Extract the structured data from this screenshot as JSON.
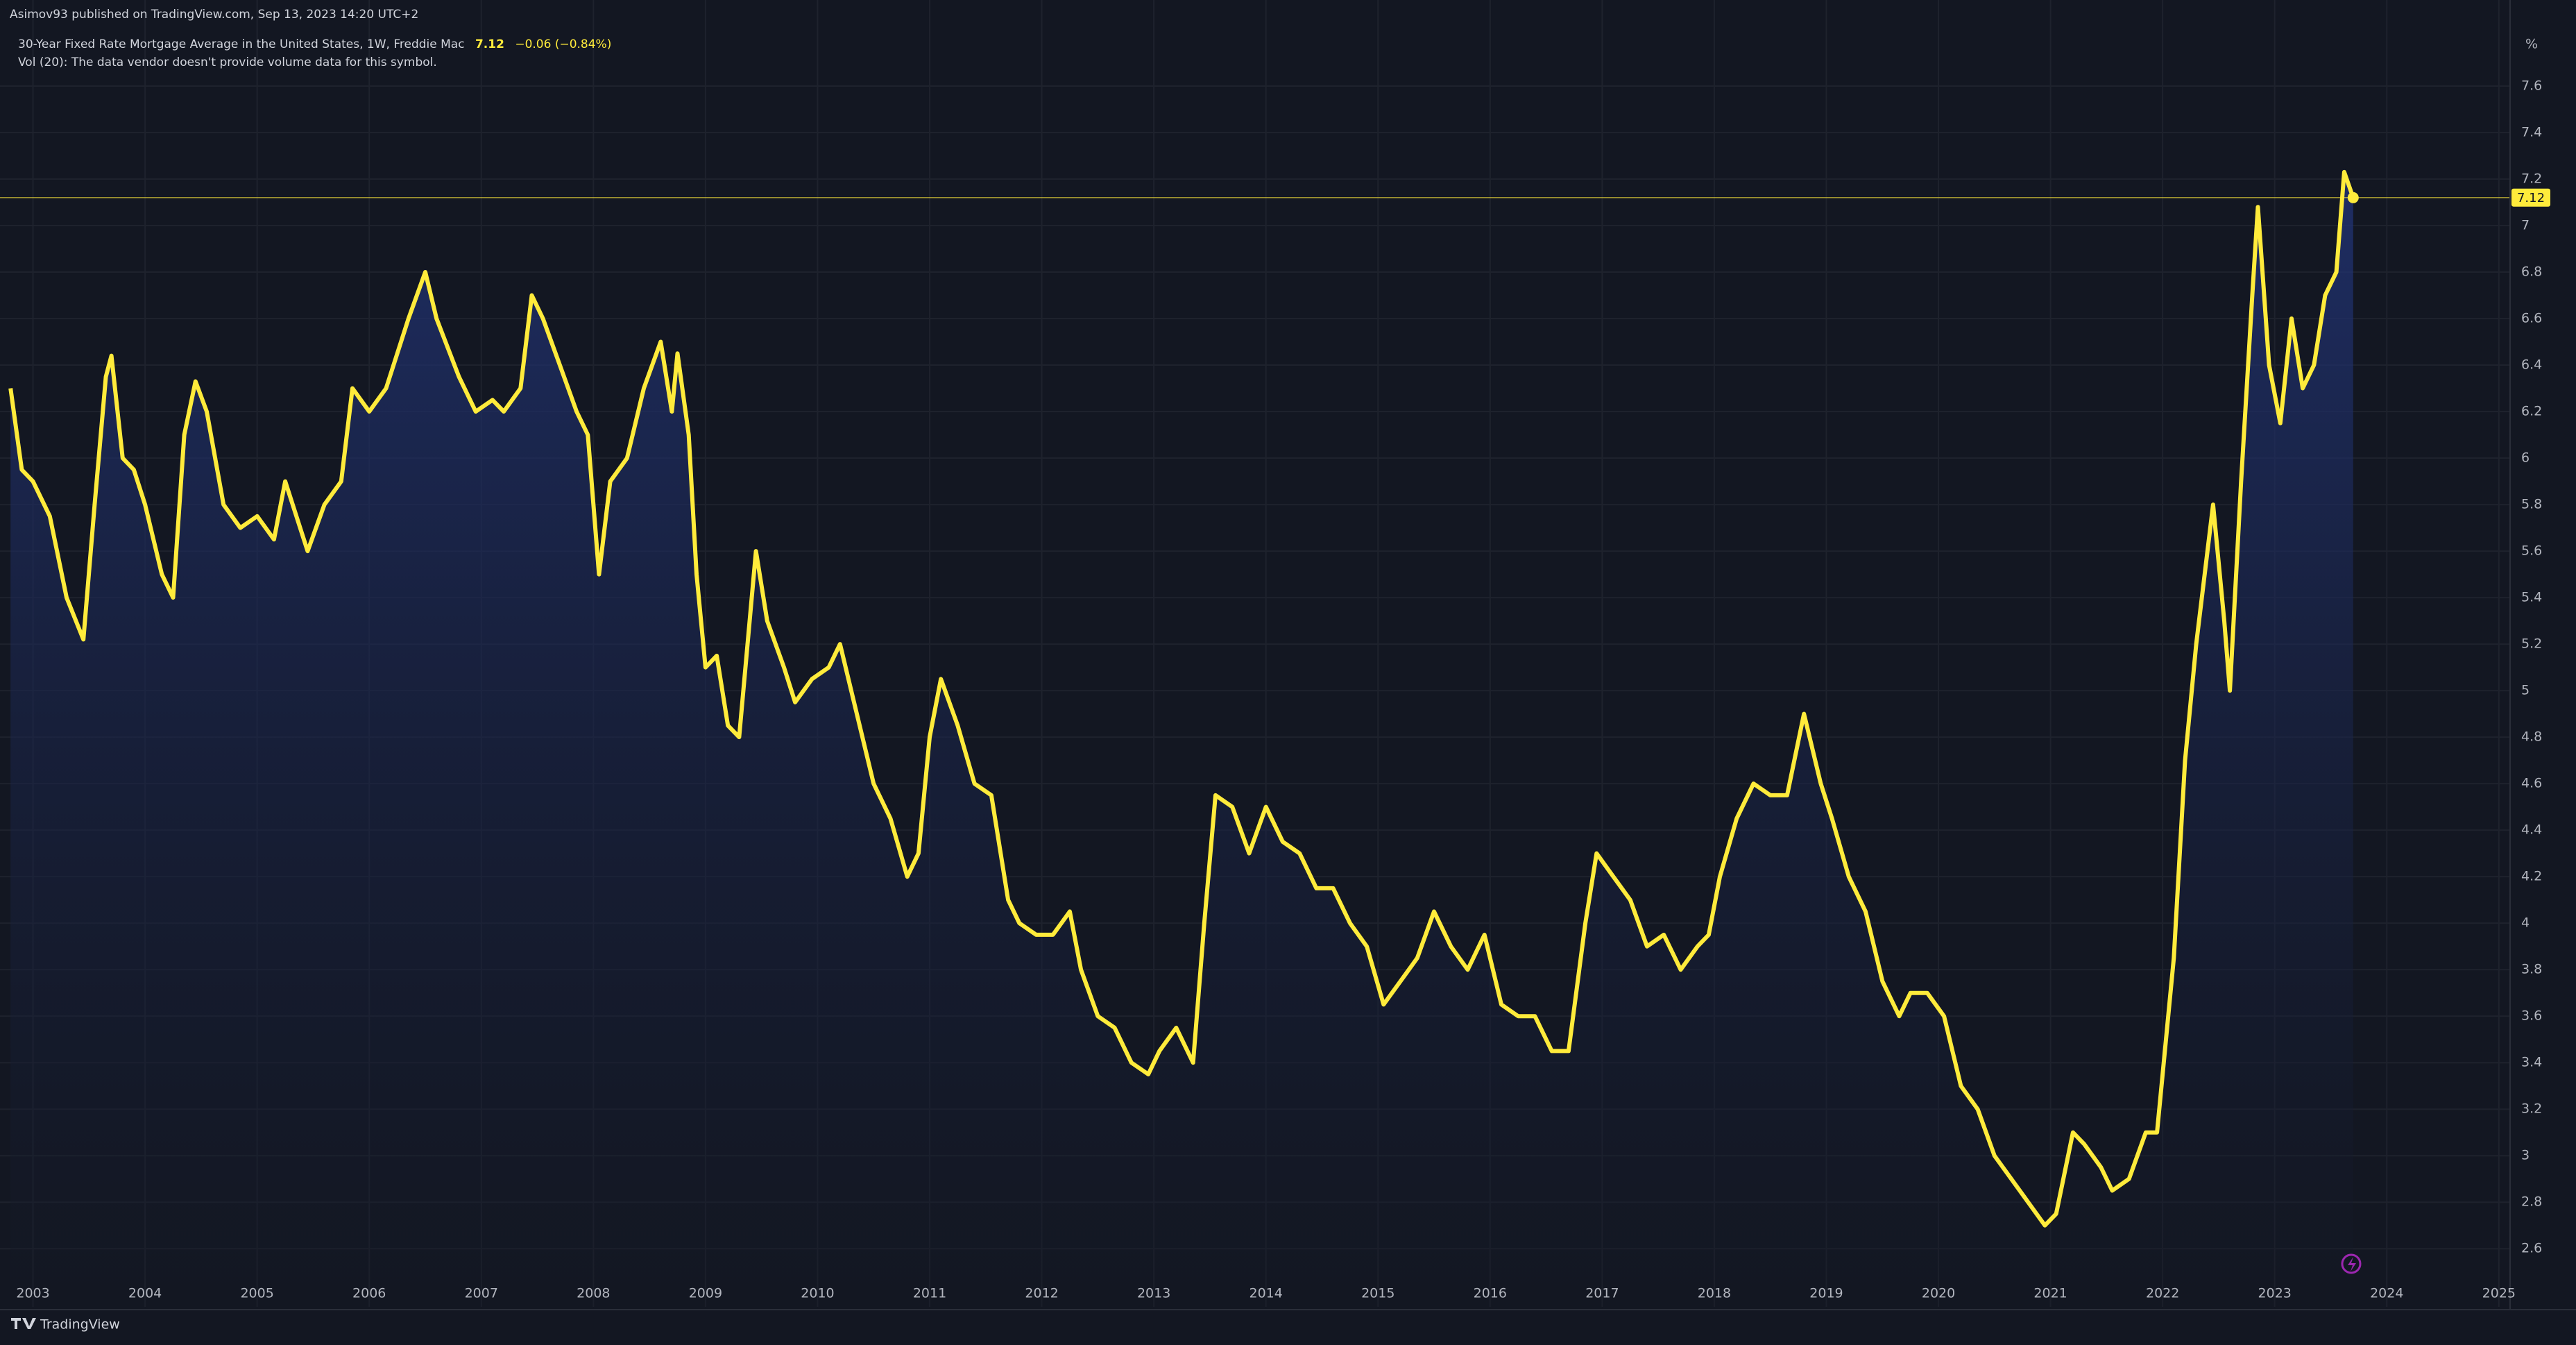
{
  "header": {
    "publisher": "Asimov93 published on TradingView.com, Sep 13, 2023 14:20 UTC+2",
    "symbol": "30-Year Fixed Rate Mortgage Average in the United States, 1W, Freddie Mac",
    "change": "−0.06 (−0.84%)",
    "volume_note": "Vol (20): The data vendor doesn't provide volume data for this symbol."
  },
  "chart_data": {
    "type": "area",
    "unit_label": "%",
    "x": [
      2002.8,
      2002.9,
      2003.0,
      2003.15,
      2003.3,
      2003.45,
      2003.55,
      2003.65,
      2003.7,
      2003.8,
      2003.9,
      2004.0,
      2004.15,
      2004.25,
      2004.35,
      2004.45,
      2004.55,
      2004.7,
      2004.85,
      2005.0,
      2005.15,
      2005.25,
      2005.45,
      2005.6,
      2005.75,
      2005.85,
      2006.0,
      2006.15,
      2006.35,
      2006.5,
      2006.6,
      2006.8,
      2006.95,
      2007.1,
      2007.2,
      2007.35,
      2007.45,
      2007.55,
      2007.7,
      2007.85,
      2007.95,
      2008.05,
      2008.15,
      2008.3,
      2008.45,
      2008.6,
      2008.7,
      2008.75,
      2008.85,
      2008.92,
      2009.0,
      2009.1,
      2009.2,
      2009.3,
      2009.45,
      2009.55,
      2009.7,
      2009.8,
      2009.95,
      2010.1,
      2010.2,
      2010.35,
      2010.5,
      2010.65,
      2010.8,
      2010.9,
      2011.0,
      2011.1,
      2011.25,
      2011.4,
      2011.55,
      2011.7,
      2011.8,
      2011.95,
      2012.1,
      2012.25,
      2012.35,
      2012.5,
      2012.65,
      2012.8,
      2012.95,
      2013.05,
      2013.2,
      2013.35,
      2013.45,
      2013.55,
      2013.7,
      2013.85,
      2014.0,
      2014.15,
      2014.3,
      2014.45,
      2014.6,
      2014.75,
      2014.9,
      2015.05,
      2015.2,
      2015.35,
      2015.5,
      2015.65,
      2015.8,
      2015.95,
      2016.1,
      2016.25,
      2016.4,
      2016.55,
      2016.7,
      2016.85,
      2016.95,
      2017.1,
      2017.25,
      2017.4,
      2017.55,
      2017.7,
      2017.85,
      2017.95,
      2018.05,
      2018.2,
      2018.35,
      2018.5,
      2018.65,
      2018.8,
      2018.95,
      2019.05,
      2019.2,
      2019.35,
      2019.5,
      2019.65,
      2019.75,
      2019.9,
      2020.05,
      2020.2,
      2020.35,
      2020.5,
      2020.65,
      2020.8,
      2020.95,
      2021.05,
      2021.2,
      2021.3,
      2021.45,
      2021.55,
      2021.7,
      2021.85,
      2021.95,
      2022.1,
      2022.2,
      2022.3,
      2022.45,
      2022.55,
      2022.6,
      2022.7,
      2022.8,
      2022.85,
      2022.95,
      2023.05,
      2023.15,
      2023.25,
      2023.35,
      2023.45,
      2023.55,
      2023.62,
      2023.7
    ],
    "series": [
      {
        "color": "#ffeb3b",
        "values": [
          6.3,
          5.95,
          5.9,
          5.75,
          5.4,
          5.22,
          5.8,
          6.35,
          6.44,
          6.0,
          5.95,
          5.8,
          5.5,
          5.4,
          6.1,
          6.33,
          6.2,
          5.8,
          5.7,
          5.75,
          5.65,
          5.9,
          5.6,
          5.8,
          5.9,
          6.3,
          6.2,
          6.3,
          6.6,
          6.8,
          6.6,
          6.35,
          6.2,
          6.25,
          6.2,
          6.3,
          6.7,
          6.6,
          6.4,
          6.2,
          6.1,
          5.5,
          5.9,
          6.0,
          6.3,
          6.5,
          6.2,
          6.45,
          6.1,
          5.5,
          5.1,
          5.15,
          4.85,
          4.8,
          5.6,
          5.3,
          5.1,
          4.95,
          5.05,
          5.1,
          5.2,
          4.9,
          4.6,
          4.45,
          4.2,
          4.3,
          4.8,
          5.05,
          4.85,
          4.6,
          4.55,
          4.1,
          4.0,
          3.95,
          3.95,
          4.05,
          3.8,
          3.6,
          3.55,
          3.4,
          3.35,
          3.45,
          3.55,
          3.4,
          4.0,
          4.55,
          4.5,
          4.3,
          4.5,
          4.35,
          4.3,
          4.15,
          4.15,
          4.0,
          3.9,
          3.65,
          3.75,
          3.85,
          4.05,
          3.9,
          3.8,
          3.95,
          3.65,
          3.6,
          3.6,
          3.45,
          3.45,
          4.0,
          4.3,
          4.2,
          4.1,
          3.9,
          3.95,
          3.8,
          3.9,
          3.95,
          4.2,
          4.45,
          4.6,
          4.55,
          4.55,
          4.9,
          4.6,
          4.45,
          4.2,
          4.05,
          3.75,
          3.6,
          3.7,
          3.7,
          3.6,
          3.3,
          3.2,
          3.0,
          2.9,
          2.8,
          2.7,
          2.75,
          3.1,
          3.05,
          2.95,
          2.85,
          2.9,
          3.1,
          3.1,
          3.85,
          4.7,
          5.2,
          5.8,
          5.3,
          5.0,
          5.9,
          6.7,
          7.08,
          6.4,
          6.15,
          6.6,
          6.3,
          6.4,
          6.7,
          6.8,
          7.23,
          7.12
        ]
      }
    ],
    "xlim": [
      2002.78,
      2025.1
    ],
    "xticks": [
      2003,
      2004,
      2005,
      2006,
      2007,
      2008,
      2009,
      2010,
      2011,
      2012,
      2013,
      2014,
      2015,
      2016,
      2017,
      2018,
      2019,
      2020,
      2021,
      2022,
      2023,
      2024,
      2025
    ],
    "ylim": [
      2.35,
      7.97
    ],
    "yticks": [
      2.6,
      2.8,
      3,
      3.2,
      3.4,
      3.6,
      3.8,
      4,
      4.2,
      4.4,
      4.6,
      4.8,
      5,
      5.2,
      5.4,
      5.6,
      5.8,
      6,
      6.2,
      6.4,
      6.6,
      6.8,
      7,
      7.2,
      7.4,
      7.6
    ],
    "grid": true
  },
  "footer": {
    "brand": "TradingView"
  }
}
